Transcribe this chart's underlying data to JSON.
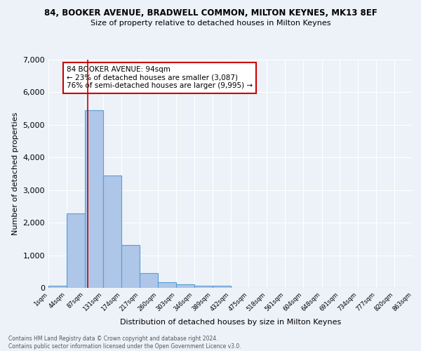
{
  "title1": "84, BOOKER AVENUE, BRADWELL COMMON, MILTON KEYNES, MK13 8EF",
  "title2": "Size of property relative to detached houses in Milton Keynes",
  "xlabel": "Distribution of detached houses by size in Milton Keynes",
  "ylabel": "Number of detached properties",
  "footer1": "Contains HM Land Registry data © Crown copyright and database right 2024.",
  "footer2": "Contains public sector information licensed under the Open Government Licence v3.0.",
  "bar_values": [
    75,
    2280,
    5450,
    3450,
    1310,
    450,
    180,
    100,
    75,
    55,
    0,
    0,
    0,
    0,
    0,
    0,
    0,
    0,
    0,
    0
  ],
  "bar_edges": [
    1,
    44,
    87,
    131,
    174,
    217,
    260,
    303,
    346,
    389,
    432,
    475,
    518,
    561,
    604,
    648,
    691,
    734,
    777,
    820,
    863
  ],
  "tick_labels": [
    "1sqm",
    "44sqm",
    "87sqm",
    "131sqm",
    "174sqm",
    "217sqm",
    "260sqm",
    "303sqm",
    "346sqm",
    "389sqm",
    "432sqm",
    "475sqm",
    "518sqm",
    "561sqm",
    "604sqm",
    "648sqm",
    "691sqm",
    "734sqm",
    "777sqm",
    "820sqm",
    "863sqm"
  ],
  "bar_color": "#aec6e8",
  "bar_edge_color": "#5a9fd4",
  "vline_x": 94,
  "vline_color": "#cc0000",
  "annotation_box_text": "84 BOOKER AVENUE: 94sqm\n← 23% of detached houses are smaller (3,087)\n76% of semi-detached houses are larger (9,995) →",
  "annotation_box_color": "#cc0000",
  "ylim": [
    0,
    7000
  ],
  "background_color": "#edf2f9",
  "grid_color": "#ffffff"
}
